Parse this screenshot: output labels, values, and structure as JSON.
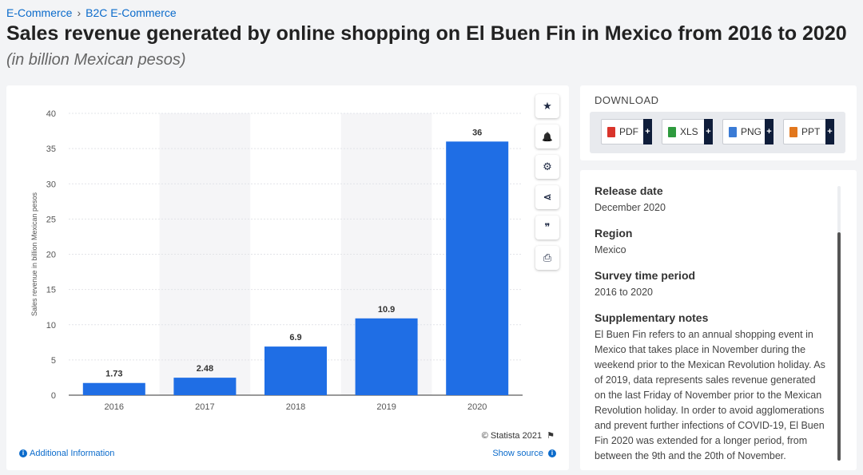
{
  "breadcrumb": {
    "first": "E-Commerce",
    "second": "B2C E-Commerce",
    "separator": "›"
  },
  "title": "Sales revenue generated by online shopping on El Buen Fin in Mexico from 2016 to 2020",
  "subtitle": "(in billion Mexican pesos)",
  "chart_data": {
    "type": "bar",
    "categories": [
      "2016",
      "2017",
      "2018",
      "2019",
      "2020"
    ],
    "values": [
      1.73,
      2.48,
      6.9,
      10.9,
      36
    ],
    "value_labels": [
      "1.73",
      "2.48",
      "6.9",
      "10.9",
      "36"
    ],
    "ylabel": "Sales revenue in billion Mexican pesos",
    "xlabel": "",
    "ylim": [
      0,
      40
    ],
    "yticks": [
      0,
      5,
      10,
      15,
      20,
      25,
      30,
      35,
      40
    ],
    "bar_color": "#1f6ee5",
    "grid": true
  },
  "toolbar": {
    "tools": [
      {
        "name": "star-icon",
        "glyph": "★"
      },
      {
        "name": "bell-icon",
        "glyph": "🔔"
      },
      {
        "name": "gear-icon",
        "glyph": "⚙"
      },
      {
        "name": "share-icon",
        "glyph": "⋖"
      },
      {
        "name": "quote-icon",
        "glyph": "❞"
      },
      {
        "name": "print-icon",
        "glyph": "⎙"
      }
    ]
  },
  "credit": {
    "text": "© Statista 2021",
    "flag_icon": "flag-icon"
  },
  "additional_info": {
    "label": "Additional Information",
    "icon": "info-icon"
  },
  "show_source": {
    "label": "Show source",
    "icon": "info-icon"
  },
  "download": {
    "title": "DOWNLOAD",
    "buttons": [
      {
        "label": "PDF",
        "plus": "+",
        "color": "#d9342b"
      },
      {
        "label": "XLS",
        "plus": "+",
        "color": "#2e9a3e"
      },
      {
        "label": "PNG",
        "plus": "+",
        "color": "#3a7bd5"
      },
      {
        "label": "PPT",
        "plus": "+",
        "color": "#e2771d"
      }
    ]
  },
  "meta": {
    "release_date_label": "Release date",
    "release_date": "December 2020",
    "region_label": "Region",
    "region": "Mexico",
    "survey_label": "Survey time period",
    "survey": "2016 to 2020",
    "notes_label": "Supplementary notes",
    "notes": "El Buen Fin refers to an annual shopping event in Mexico that takes place in November during the weekend prior to the Mexican Revolution holiday. As of 2019, data represents sales revenue generated on the last Friday of November prior to the Mexican Revolution holiday. In order to avoid agglomerations and prevent further infections of COVID-19, El Buen Fin 2020 was extended for a longer period, from between the 9th and the 20th of November."
  }
}
